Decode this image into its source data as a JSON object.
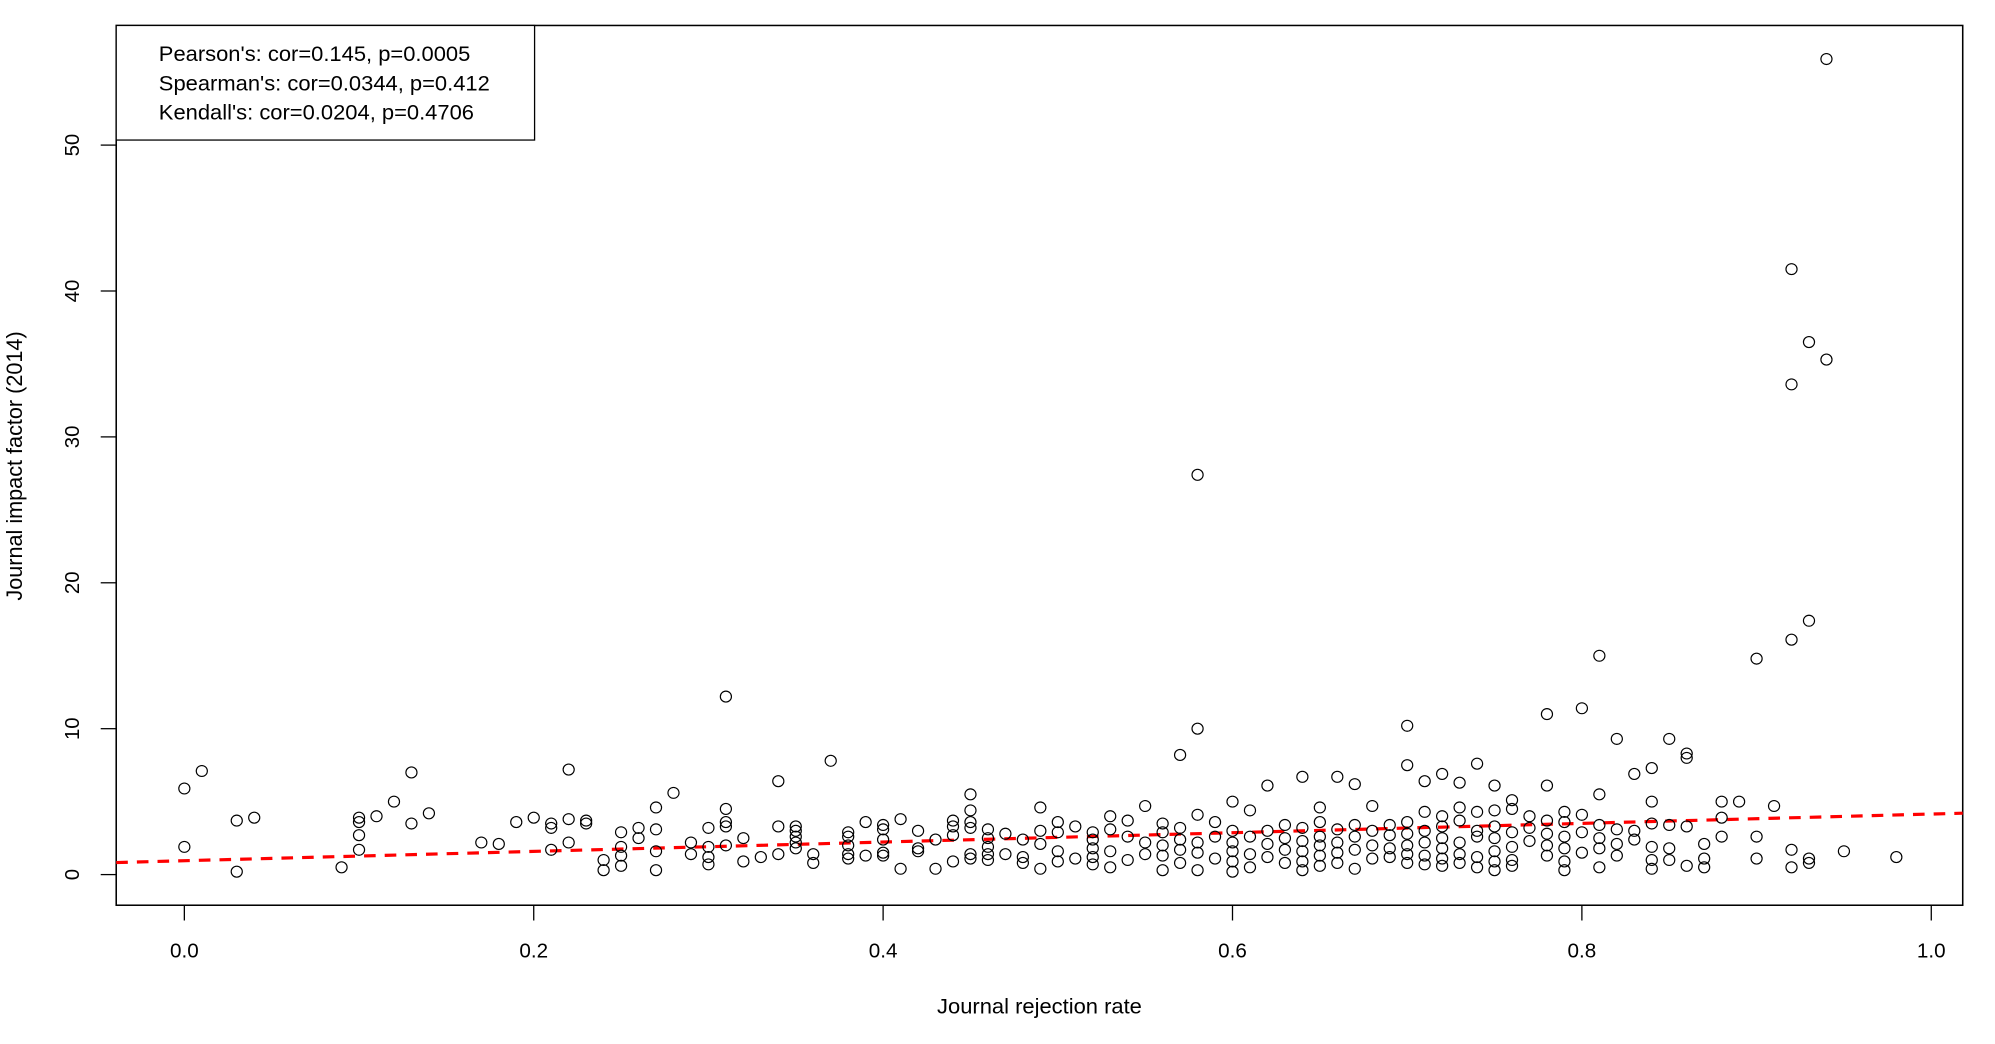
{
  "chart_data": {
    "type": "scatter",
    "title": "",
    "xlabel": "Journal rejection rate",
    "ylabel": "Journal impact factor (2014)",
    "xlim": [
      -0.039,
      1.018
    ],
    "ylim": [
      -2.1,
      58.2
    ],
    "xticks": [
      0.0,
      0.2,
      0.4,
      0.6,
      0.8,
      1.0
    ],
    "xtick_labels": [
      "0.0",
      "0.2",
      "0.4",
      "0.6",
      "0.8",
      "1.0"
    ],
    "yticks": [
      0,
      10,
      20,
      30,
      40,
      50
    ],
    "ytick_labels": [
      "0",
      "10",
      "20",
      "30",
      "40",
      "50"
    ],
    "grid": false,
    "legend": {
      "placement": "top-left",
      "entries": [
        "Pearson's: cor=0.145, p=0.0005",
        "Spearman's: cor=0.0344, p=0.412",
        "Kendall's: cor=0.0204, p=0.4706"
      ]
    },
    "fit_line": {
      "intercept": 0.95,
      "slope": 3.2,
      "color": "#ff0000",
      "style": "dashed"
    },
    "point_color": "#000000",
    "points": [
      [
        0,
        5.9
      ],
      [
        0.01,
        7.1
      ],
      [
        0,
        1.9
      ],
      [
        0.03,
        3.7
      ],
      [
        0.04,
        3.9
      ],
      [
        0.03,
        0.2
      ],
      [
        0.09,
        0.5
      ],
      [
        0.1,
        3.9
      ],
      [
        0.1,
        3.6
      ],
      [
        0.1,
        2.7
      ],
      [
        0.1,
        1.7
      ],
      [
        0.11,
        4.0
      ],
      [
        0.12,
        5.0
      ],
      [
        0.13,
        7.0
      ],
      [
        0.13,
        3.5
      ],
      [
        0.14,
        4.2
      ],
      [
        0.17,
        2.2
      ],
      [
        0.18,
        2.1
      ],
      [
        0.19,
        3.6
      ],
      [
        0.2,
        3.9
      ],
      [
        0.21,
        3.5
      ],
      [
        0.21,
        3.2
      ],
      [
        0.21,
        1.7
      ],
      [
        0.22,
        7.2
      ],
      [
        0.22,
        3.8
      ],
      [
        0.22,
        2.2
      ],
      [
        0.23,
        3.7
      ],
      [
        0.23,
        3.5
      ],
      [
        0.24,
        1.0
      ],
      [
        0.24,
        0.3
      ],
      [
        0.25,
        2.9
      ],
      [
        0.25,
        1.9
      ],
      [
        0.25,
        1.3
      ],
      [
        0.25,
        0.6
      ],
      [
        0.26,
        3.2
      ],
      [
        0.26,
        2.5
      ],
      [
        0.27,
        4.6
      ],
      [
        0.27,
        3.1
      ],
      [
        0.27,
        1.6
      ],
      [
        0.27,
        0.3
      ],
      [
        0.28,
        5.6
      ],
      [
        0.29,
        2.2
      ],
      [
        0.29,
        1.4
      ],
      [
        0.3,
        3.2
      ],
      [
        0.3,
        1.9
      ],
      [
        0.3,
        1.2
      ],
      [
        0.3,
        0.7
      ],
      [
        0.31,
        4.5
      ],
      [
        0.31,
        3.6
      ],
      [
        0.31,
        3.3
      ],
      [
        0.31,
        2.0
      ],
      [
        0.31,
        12.2
      ],
      [
        0.32,
        2.5
      ],
      [
        0.32,
        0.9
      ],
      [
        0.33,
        1.2
      ],
      [
        0.34,
        6.4
      ],
      [
        0.34,
        3.3
      ],
      [
        0.34,
        1.4
      ],
      [
        0.35,
        3.3
      ],
      [
        0.35,
        3.0
      ],
      [
        0.35,
        2.6
      ],
      [
        0.35,
        2.2
      ],
      [
        0.35,
        1.8
      ],
      [
        0.36,
        1.4
      ],
      [
        0.36,
        0.8
      ],
      [
        0.37,
        7.8
      ],
      [
        0.38,
        2.9
      ],
      [
        0.38,
        2.6
      ],
      [
        0.38,
        2.0
      ],
      [
        0.38,
        1.4
      ],
      [
        0.38,
        1.1
      ],
      [
        0.39,
        3.6
      ],
      [
        0.39,
        1.3
      ],
      [
        0.4,
        3.4
      ],
      [
        0.4,
        3.1
      ],
      [
        0.4,
        2.4
      ],
      [
        0.4,
        1.5
      ],
      [
        0.4,
        1.3
      ],
      [
        0.41,
        3.8
      ],
      [
        0.41,
        0.4
      ],
      [
        0.42,
        3.0
      ],
      [
        0.42,
        1.8
      ],
      [
        0.42,
        1.6
      ],
      [
        0.43,
        2.4
      ],
      [
        0.43,
        0.4
      ],
      [
        0.44,
        3.7
      ],
      [
        0.44,
        3.3
      ],
      [
        0.44,
        2.7
      ],
      [
        0.44,
        0.9
      ],
      [
        0.45,
        5.5
      ],
      [
        0.45,
        4.4
      ],
      [
        0.45,
        3.6
      ],
      [
        0.45,
        3.2
      ],
      [
        0.45,
        1.4
      ],
      [
        0.45,
        1.1
      ],
      [
        0.46,
        3.1
      ],
      [
        0.46,
        2.5
      ],
      [
        0.46,
        1.9
      ],
      [
        0.46,
        1.4
      ],
      [
        0.46,
        1.0
      ],
      [
        0.47,
        2.8
      ],
      [
        0.47,
        1.4
      ],
      [
        0.48,
        2.4
      ],
      [
        0.48,
        1.2
      ],
      [
        0.48,
        0.8
      ],
      [
        0.49,
        4.6
      ],
      [
        0.49,
        3.0
      ],
      [
        0.49,
        2.1
      ],
      [
        0.49,
        0.4
      ],
      [
        0.5,
        3.6
      ],
      [
        0.5,
        2.9
      ],
      [
        0.5,
        1.6
      ],
      [
        0.5,
        0.9
      ],
      [
        0.51,
        3.3
      ],
      [
        0.51,
        1.1
      ],
      [
        0.52,
        2.9
      ],
      [
        0.52,
        2.4
      ],
      [
        0.52,
        1.8
      ],
      [
        0.52,
        1.2
      ],
      [
        0.52,
        0.7
      ],
      [
        0.53,
        4.0
      ],
      [
        0.53,
        3.1
      ],
      [
        0.53,
        1.6
      ],
      [
        0.53,
        0.5
      ],
      [
        0.54,
        3.7
      ],
      [
        0.54,
        2.6
      ],
      [
        0.54,
        1.0
      ],
      [
        0.55,
        4.7
      ],
      [
        0.55,
        2.2
      ],
      [
        0.55,
        1.4
      ],
      [
        0.56,
        3.5
      ],
      [
        0.56,
        2.9
      ],
      [
        0.56,
        2.0
      ],
      [
        0.56,
        1.3
      ],
      [
        0.56,
        0.3
      ],
      [
        0.57,
        8.2
      ],
      [
        0.57,
        3.2
      ],
      [
        0.57,
        2.4
      ],
      [
        0.57,
        1.7
      ],
      [
        0.57,
        0.8
      ],
      [
        0.58,
        27.4
      ],
      [
        0.58,
        10.0
      ],
      [
        0.58,
        4.1
      ],
      [
        0.58,
        2.2
      ],
      [
        0.58,
        1.5
      ],
      [
        0.58,
        0.3
      ],
      [
        0.59,
        3.6
      ],
      [
        0.59,
        2.6
      ],
      [
        0.59,
        1.1
      ],
      [
        0.6,
        5.0
      ],
      [
        0.6,
        3.0
      ],
      [
        0.6,
        2.2
      ],
      [
        0.6,
        1.6
      ],
      [
        0.6,
        0.9
      ],
      [
        0.6,
        0.2
      ],
      [
        0.61,
        4.4
      ],
      [
        0.61,
        2.6
      ],
      [
        0.61,
        1.4
      ],
      [
        0.61,
        0.5
      ],
      [
        0.62,
        6.1
      ],
      [
        0.62,
        3.0
      ],
      [
        0.62,
        2.1
      ],
      [
        0.62,
        1.2
      ],
      [
        0.63,
        3.4
      ],
      [
        0.63,
        2.5
      ],
      [
        0.63,
        1.7
      ],
      [
        0.63,
        0.8
      ],
      [
        0.64,
        6.7
      ],
      [
        0.64,
        3.2
      ],
      [
        0.64,
        2.3
      ],
      [
        0.64,
        1.6
      ],
      [
        0.64,
        0.9
      ],
      [
        0.64,
        0.3
      ],
      [
        0.65,
        4.6
      ],
      [
        0.65,
        3.6
      ],
      [
        0.65,
        2.6
      ],
      [
        0.65,
        2.0
      ],
      [
        0.65,
        1.3
      ],
      [
        0.65,
        0.6
      ],
      [
        0.66,
        6.7
      ],
      [
        0.66,
        3.1
      ],
      [
        0.66,
        2.2
      ],
      [
        0.66,
        1.5
      ],
      [
        0.66,
        0.8
      ],
      [
        0.67,
        6.2
      ],
      [
        0.67,
        3.4
      ],
      [
        0.67,
        2.6
      ],
      [
        0.67,
        1.7
      ],
      [
        0.67,
        0.4
      ],
      [
        0.68,
        4.7
      ],
      [
        0.68,
        3.0
      ],
      [
        0.68,
        2.0
      ],
      [
        0.68,
        1.1
      ],
      [
        0.69,
        3.4
      ],
      [
        0.69,
        2.7
      ],
      [
        0.69,
        1.8
      ],
      [
        0.69,
        1.2
      ],
      [
        0.7,
        10.2
      ],
      [
        0.7,
        7.5
      ],
      [
        0.7,
        3.6
      ],
      [
        0.7,
        2.8
      ],
      [
        0.7,
        2.0
      ],
      [
        0.7,
        1.4
      ],
      [
        0.7,
        0.8
      ],
      [
        0.71,
        6.4
      ],
      [
        0.71,
        4.3
      ],
      [
        0.71,
        3.0
      ],
      [
        0.71,
        2.2
      ],
      [
        0.71,
        1.3
      ],
      [
        0.71,
        0.7
      ],
      [
        0.72,
        6.9
      ],
      [
        0.72,
        4.0
      ],
      [
        0.72,
        3.3
      ],
      [
        0.72,
        2.5
      ],
      [
        0.72,
        1.8
      ],
      [
        0.72,
        1.1
      ],
      [
        0.72,
        0.6
      ],
      [
        0.73,
        6.3
      ],
      [
        0.73,
        4.6
      ],
      [
        0.73,
        3.7
      ],
      [
        0.73,
        2.2
      ],
      [
        0.73,
        1.4
      ],
      [
        0.73,
        0.8
      ],
      [
        0.74,
        7.6
      ],
      [
        0.74,
        4.3
      ],
      [
        0.74,
        3.0
      ],
      [
        0.74,
        2.6
      ],
      [
        0.74,
        1.2
      ],
      [
        0.74,
        0.5
      ],
      [
        0.75,
        6.1
      ],
      [
        0.75,
        4.4
      ],
      [
        0.75,
        3.3
      ],
      [
        0.75,
        2.5
      ],
      [
        0.75,
        1.6
      ],
      [
        0.75,
        0.9
      ],
      [
        0.75,
        0.3
      ],
      [
        0.76,
        5.1
      ],
      [
        0.76,
        4.5
      ],
      [
        0.76,
        2.9
      ],
      [
        0.76,
        1.9
      ],
      [
        0.76,
        1.0
      ],
      [
        0.76,
        0.6
      ],
      [
        0.77,
        4.0
      ],
      [
        0.77,
        3.2
      ],
      [
        0.77,
        2.3
      ],
      [
        0.78,
        11.0
      ],
      [
        0.78,
        6.1
      ],
      [
        0.78,
        3.7
      ],
      [
        0.78,
        2.8
      ],
      [
        0.78,
        2.0
      ],
      [
        0.78,
        1.3
      ],
      [
        0.79,
        4.3
      ],
      [
        0.79,
        3.6
      ],
      [
        0.79,
        2.6
      ],
      [
        0.79,
        1.8
      ],
      [
        0.79,
        0.9
      ],
      [
        0.79,
        0.3
      ],
      [
        0.8,
        11.4
      ],
      [
        0.8,
        4.1
      ],
      [
        0.8,
        2.9
      ],
      [
        0.8,
        1.5
      ],
      [
        0.81,
        15.0
      ],
      [
        0.81,
        5.5
      ],
      [
        0.81,
        3.4
      ],
      [
        0.81,
        2.5
      ],
      [
        0.81,
        1.8
      ],
      [
        0.81,
        0.5
      ],
      [
        0.82,
        9.3
      ],
      [
        0.82,
        3.1
      ],
      [
        0.82,
        2.1
      ],
      [
        0.82,
        1.3
      ],
      [
        0.83,
        6.9
      ],
      [
        0.83,
        3.0
      ],
      [
        0.83,
        2.4
      ],
      [
        0.84,
        7.3
      ],
      [
        0.84,
        5.0
      ],
      [
        0.84,
        3.5
      ],
      [
        0.84,
        1.9
      ],
      [
        0.84,
        1.0
      ],
      [
        0.84,
        0.4
      ],
      [
        0.85,
        9.3
      ],
      [
        0.85,
        3.4
      ],
      [
        0.85,
        1.8
      ],
      [
        0.85,
        1.0
      ],
      [
        0.86,
        8.3
      ],
      [
        0.86,
        8.0
      ],
      [
        0.86,
        3.3
      ],
      [
        0.86,
        0.6
      ],
      [
        0.87,
        2.1
      ],
      [
        0.87,
        1.1
      ],
      [
        0.87,
        0.5
      ],
      [
        0.88,
        5.0
      ],
      [
        0.88,
        3.9
      ],
      [
        0.88,
        2.6
      ],
      [
        0.89,
        5.0
      ],
      [
        0.9,
        14.8
      ],
      [
        0.9,
        2.6
      ],
      [
        0.9,
        1.1
      ],
      [
        0.91,
        4.7
      ],
      [
        0.92,
        41.5
      ],
      [
        0.92,
        33.6
      ],
      [
        0.92,
        16.1
      ],
      [
        0.92,
        1.7
      ],
      [
        0.92,
        0.5
      ],
      [
        0.93,
        36.5
      ],
      [
        0.93,
        17.4
      ],
      [
        0.93,
        1.1
      ],
      [
        0.93,
        0.8
      ],
      [
        0.94,
        55.9
      ],
      [
        0.94,
        35.3
      ],
      [
        0.95,
        1.6
      ],
      [
        0.98,
        1.2
      ]
    ]
  }
}
